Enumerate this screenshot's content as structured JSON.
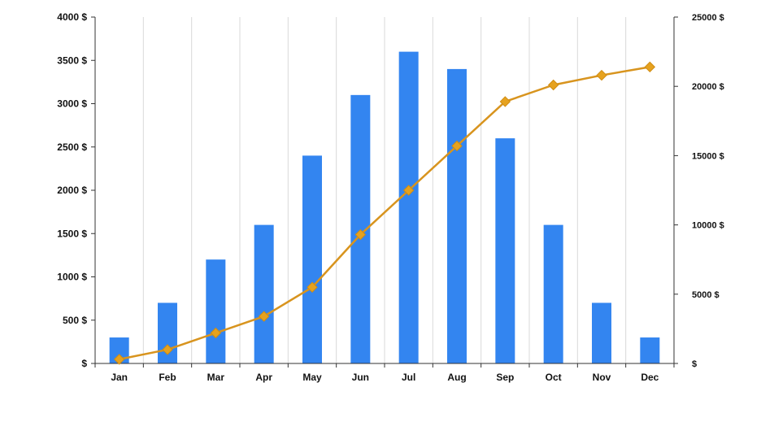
{
  "chart_data": {
    "type": "bar+line",
    "categories": [
      "Jan",
      "Feb",
      "Mar",
      "Apr",
      "May",
      "Jun",
      "Jul",
      "Aug",
      "Sep",
      "Oct",
      "Nov",
      "Dec"
    ],
    "series": [
      {
        "type": "bar",
        "axis": "left",
        "color": "#3385F0",
        "values": [
          300,
          700,
          1200,
          1600,
          2400,
          3100,
          3600,
          3400,
          2600,
          1600,
          700,
          300
        ]
      },
      {
        "type": "line",
        "axis": "right",
        "color": "#E6A21F",
        "marker": "diamond",
        "values": [
          300,
          1000,
          2200,
          3400,
          5500,
          9300,
          12500,
          15700,
          18900,
          20100,
          20800,
          21400
        ]
      }
    ],
    "left_axis": {
      "ylim": [
        0,
        4000
      ],
      "ticks": [
        0,
        500,
        1000,
        1500,
        2000,
        2500,
        3000,
        3500,
        4000
      ],
      "tick_labels": [
        "$",
        "500 $",
        "1000 $",
        "1500 $",
        "2000 $",
        "2500 $",
        "3000 $",
        "3500 $",
        "4000 $"
      ]
    },
    "right_axis": {
      "ylim": [
        0,
        25000
      ],
      "ticks": [
        0,
        5000,
        10000,
        15000,
        20000,
        25000
      ],
      "tick_labels": [
        "$",
        "5000 $",
        "10000 $",
        "15000 $",
        "20000 $",
        "25000 $"
      ]
    },
    "grid": "vertical",
    "legend": "none"
  }
}
